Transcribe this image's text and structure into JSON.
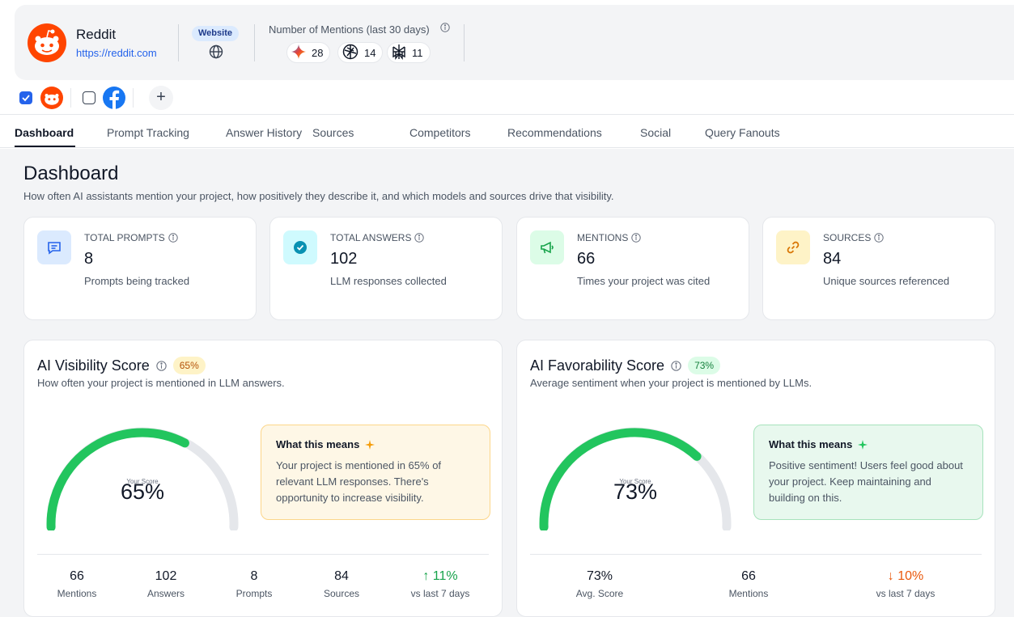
{
  "project": {
    "name": "Reddit",
    "url": "https://reddit.com",
    "badge": "Website"
  },
  "mentions": {
    "title": "Number of Mentions (last 30 days)",
    "counts": [
      {
        "icon": "gemini-icon",
        "value": "28"
      },
      {
        "icon": "chatgpt-icon",
        "value": "14"
      },
      {
        "icon": "perplexity-icon",
        "value": "11"
      }
    ]
  },
  "switcher": {
    "add_label": "+"
  },
  "tabs": [
    "Dashboard",
    "Prompt Tracking",
    "Answer History",
    "Sources",
    "Competitors",
    "Recommendations",
    "Social",
    "Query Fanouts"
  ],
  "dashboard": {
    "title": "Dashboard",
    "subtitle": "How often AI assistants mention your project, how positively they describe it, and which models and sources drive that visibility."
  },
  "stats": [
    {
      "label": "TOTAL PROMPTS",
      "value": "8",
      "desc": "Prompts being tracked"
    },
    {
      "label": "TOTAL ANSWERS",
      "value": "102",
      "desc": "LLM responses collected"
    },
    {
      "label": "MENTIONS",
      "value": "66",
      "desc": "Times your project was cited"
    },
    {
      "label": "SOURCES",
      "value": "84",
      "desc": "Unique sources referenced"
    }
  ],
  "visibility": {
    "title": "AI Visibility Score",
    "badge": "65%",
    "subtitle": "How often your project is mentioned in LLM answers.",
    "score": 0.65,
    "gauge_label": "Your Score",
    "gauge_value": "65%",
    "insight_title": "What this means",
    "insight_text": "Your project is mentioned in 65% of relevant LLM responses. There's opportunity to increase visibility.",
    "metrics": [
      {
        "value": "66",
        "label": "Mentions"
      },
      {
        "value": "102",
        "label": "Answers"
      },
      {
        "value": "8",
        "label": "Prompts"
      },
      {
        "value": "84",
        "label": "Sources"
      },
      {
        "value": "↑ 11%",
        "label": "vs last 7 days"
      }
    ]
  },
  "favorability": {
    "title": "AI Favorability Score",
    "badge": "73%",
    "subtitle": "Average sentiment when your project is mentioned by LLMs.",
    "score": 0.73,
    "gauge_label": "Your Score",
    "gauge_value": "73%",
    "insight_title": "What this means",
    "insight_text": "Positive sentiment! Users feel good about your project. Keep maintaining and building on this.",
    "metrics": [
      {
        "value": "73%",
        "label": "Avg. Score"
      },
      {
        "value": "66",
        "label": "Mentions"
      },
      {
        "value": "↓ 10%",
        "label": "vs last 7 days"
      }
    ]
  },
  "colors": {
    "accent": "#2563eb",
    "gauge_fill": "#22c55e",
    "gauge_track": "#e5e7eb",
    "up": "#16a34a",
    "down": "#ea580c"
  }
}
